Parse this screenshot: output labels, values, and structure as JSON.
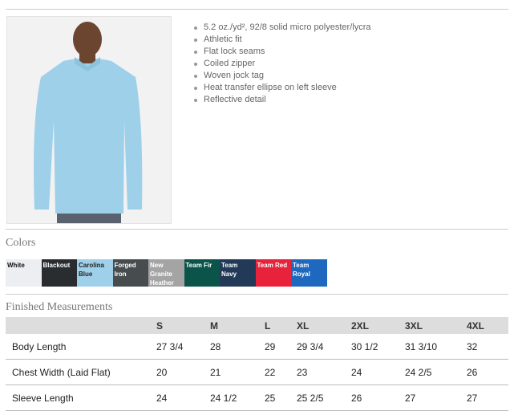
{
  "features": [
    "5.2 oz./yd², 92/8 solid micro polyester/lycra",
    "Athletic fit",
    "Flat lock seams",
    "Coiled zipper",
    "Woven jock tag",
    "Heat transfer ellipse on left sleeve",
    "Reflective detail"
  ],
  "colors_title": "Colors",
  "colors": [
    {
      "name": "White",
      "hex": "#eceef2",
      "text": "#111"
    },
    {
      "name": "Blackout",
      "hex": "#2a2d30",
      "text": "#fff"
    },
    {
      "name": "Carolina Blue",
      "hex": "#9fd0ea",
      "text": "#222"
    },
    {
      "name": "Forged Iron",
      "hex": "#474c4f",
      "text": "#fff"
    },
    {
      "name": "New Granite Heather",
      "hex": "#a4a4a5",
      "text": "#fff"
    },
    {
      "name": "Team Fir",
      "hex": "#0b5449",
      "text": "#fff"
    },
    {
      "name": "Team Navy",
      "hex": "#223957",
      "text": "#fff"
    },
    {
      "name": "Team Red",
      "hex": "#e8223a",
      "text": "#fff"
    },
    {
      "name": "Team Royal",
      "hex": "#1f68bf",
      "text": "#fff"
    }
  ],
  "measurements_title": "Finished Measurements",
  "table": {
    "headers": [
      "",
      "S",
      "M",
      "L",
      "XL",
      "2XL",
      "3XL",
      "4XL"
    ],
    "rows": [
      [
        "Body Length",
        "27 3/4",
        "28",
        "29",
        "29 3/4",
        "30 1/2",
        "31 3/10",
        "32"
      ],
      [
        "Chest Width (Laid Flat)",
        "20",
        "21",
        "22",
        "23",
        "24",
        "24 2/5",
        "26"
      ],
      [
        "Sleeve Length",
        "24",
        "24 1/2",
        "25",
        "25 2/5",
        "26",
        "27",
        "27"
      ]
    ]
  }
}
